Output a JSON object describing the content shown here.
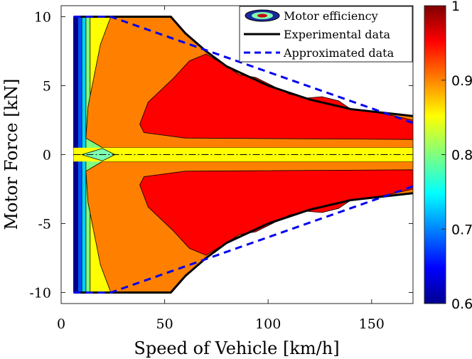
{
  "chart_data": {
    "type": "contour",
    "xlabel": "Speed of Vehicle [km/h]",
    "ylabel": "Motor Force [kN]",
    "xlim": [
      0,
      170
    ],
    "ylim": [
      -10.8,
      10.8
    ],
    "x_ticks": [
      "0",
      "50",
      "100",
      "150"
    ],
    "x_tick_values": [
      0,
      50,
      100,
      150
    ],
    "y_ticks": [
      "10",
      "5",
      "0",
      "-5",
      "-10"
    ],
    "y_tick_values": [
      10,
      5,
      0,
      -5,
      -10
    ],
    "colorbar": {
      "range": [
        0.6,
        1.0
      ],
      "ticks": [
        "1",
        "0.9",
        "0.8",
        "0.7",
        "0.6"
      ],
      "tick_values": [
        1.0,
        0.9,
        0.8,
        0.7,
        0.6
      ],
      "colormap": "jet"
    },
    "legend": {
      "placement": "top-right",
      "entries": [
        "Motor efficiency",
        "Experimental data",
        "Approximated data"
      ]
    },
    "series": [
      {
        "name": "Experimental data",
        "style": "solid",
        "color": "#000000",
        "points": [
          [
            6,
            10
          ],
          [
            53,
            10
          ],
          [
            60,
            8.8
          ],
          [
            70,
            7.5
          ],
          [
            80,
            6.4
          ],
          [
            100,
            5.0
          ],
          [
            120,
            4.0
          ],
          [
            140,
            3.3
          ],
          [
            170,
            2.8
          ]
        ]
      },
      {
        "name": "Approximated data",
        "style": "dashed",
        "color": "#0000ee",
        "points": [
          [
            6,
            10
          ],
          [
            24,
            10
          ],
          [
            170,
            2.3
          ]
        ]
      }
    ],
    "efficiency_regions": [
      {
        "level": 0.6,
        "color": "#00008f"
      },
      {
        "level": 0.65,
        "color": "#0050ff"
      },
      {
        "level": 0.7,
        "color": "#00d0ff"
      },
      {
        "level": 0.75,
        "color": "#7fff7f"
      },
      {
        "level": 0.8,
        "color": "#ffff00"
      },
      {
        "level": 0.87,
        "color": "#ff8000"
      },
      {
        "level": 0.92,
        "color": "#ff0000"
      }
    ]
  }
}
